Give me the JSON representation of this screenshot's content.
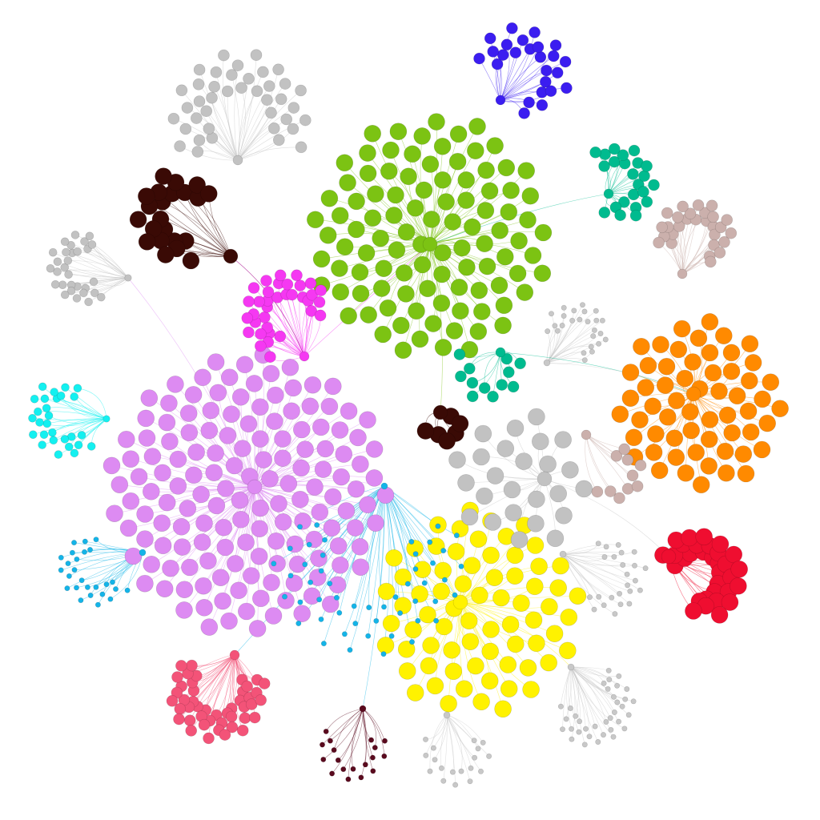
{
  "network": {
    "communities": [
      {
        "id": "green",
        "color": "#7CC313",
        "members": 100,
        "node_size": "large",
        "pattern": "phyllotaxis"
      },
      {
        "id": "violet",
        "color": "#DD8BF2",
        "members": 150,
        "node_size": "large",
        "pattern": "phyllotaxis"
      },
      {
        "id": "yellow",
        "color": "#FFF200",
        "members": 70,
        "node_size": "large",
        "pattern": "disc"
      },
      {
        "id": "orange",
        "color": "#FF8A00",
        "members": 58,
        "node_size": "large",
        "pattern": "phyllotaxis"
      },
      {
        "id": "gray",
        "color": "#C2C2C2",
        "members": 25,
        "node_size": "large",
        "pattern": "disc"
      },
      {
        "id": "red",
        "color": "#EF0E30",
        "members": 32,
        "node_size": "large",
        "pattern": "fan"
      },
      {
        "id": "pink",
        "color": "#F35378",
        "members": 45,
        "node_size": "medium",
        "pattern": "fan"
      },
      {
        "id": "magenta",
        "color": "#F538F2",
        "members": 35,
        "node_size": "medium",
        "pattern": "fan"
      },
      {
        "id": "blue",
        "color": "#3B1DF0",
        "members": 25,
        "node_size": "medium",
        "pattern": "fan"
      },
      {
        "id": "teal",
        "color": "#00BB8F",
        "members": 23,
        "node_size": "medium",
        "pattern": "fan"
      },
      {
        "id": "teal-2",
        "color": "#00BB8F",
        "members": 12,
        "node_size": "medium",
        "pattern": "fan"
      },
      {
        "id": "dark-brown",
        "color": "#3A0A05",
        "members": 22,
        "node_size": "large",
        "pattern": "fan"
      },
      {
        "id": "dark-brown-2",
        "color": "#3A0A05",
        "members": 6,
        "node_size": "large",
        "pattern": "fan"
      },
      {
        "id": "rose-gray",
        "color": "#CBB0AC",
        "members": 28,
        "node_size": "medium",
        "pattern": "fan"
      },
      {
        "id": "rose-gray-2",
        "color": "#CBB0AC",
        "members": 10,
        "node_size": "medium",
        "pattern": "fan"
      },
      {
        "id": "cyan",
        "color": "#14F0F0",
        "members": 28,
        "node_size": "small",
        "pattern": "fan"
      },
      {
        "id": "sky-blue",
        "color": "#14B4E8",
        "members": 50,
        "node_size": "tiny",
        "pattern": "fan"
      },
      {
        "id": "sky-blue-2",
        "color": "#14B4E8",
        "members": 26,
        "node_size": "tiny",
        "pattern": "fan"
      },
      {
        "id": "light-gray-top",
        "color": "#C2C2C2",
        "members": 40,
        "node_size": "medium",
        "pattern": "fan"
      },
      {
        "id": "light-gray-left",
        "color": "#C2C2C2",
        "members": 30,
        "node_size": "small",
        "pattern": "fan"
      },
      {
        "id": "light-gray-mid",
        "color": "#C8C8C8",
        "members": 25,
        "node_size": "tiny",
        "pattern": "fan"
      },
      {
        "id": "light-gray-bottom",
        "color": "#C8C8C8",
        "members": 35,
        "node_size": "tiny",
        "pattern": "fan"
      },
      {
        "id": "light-gray-right",
        "color": "#C8C8C8",
        "members": 24,
        "node_size": "tiny",
        "pattern": "fan"
      },
      {
        "id": "light-gray-small",
        "color": "#C8C8C8",
        "members": 18,
        "node_size": "tiny",
        "pattern": "fan"
      },
      {
        "id": "maroon",
        "color": "#5A0A1E",
        "members": 18,
        "node_size": "tiny",
        "pattern": "fan"
      }
    ],
    "bridges": [
      [
        "dark-brown",
        "magenta"
      ],
      [
        "magenta",
        "green"
      ],
      [
        "green",
        "dark-brown-2"
      ],
      [
        "teal",
        "green"
      ],
      [
        "teal-2",
        "orange"
      ],
      [
        "violet",
        "sky-blue"
      ],
      [
        "gray",
        "red"
      ],
      [
        "sky-blue",
        "pink"
      ],
      [
        "light-gray-mid",
        "orange"
      ],
      [
        "violet",
        "light-gray-left"
      ],
      [
        "magenta",
        "dark-brown"
      ],
      [
        "sky-blue",
        "maroon"
      ],
      [
        "yellow",
        "light-gray-bottom"
      ]
    ]
  }
}
